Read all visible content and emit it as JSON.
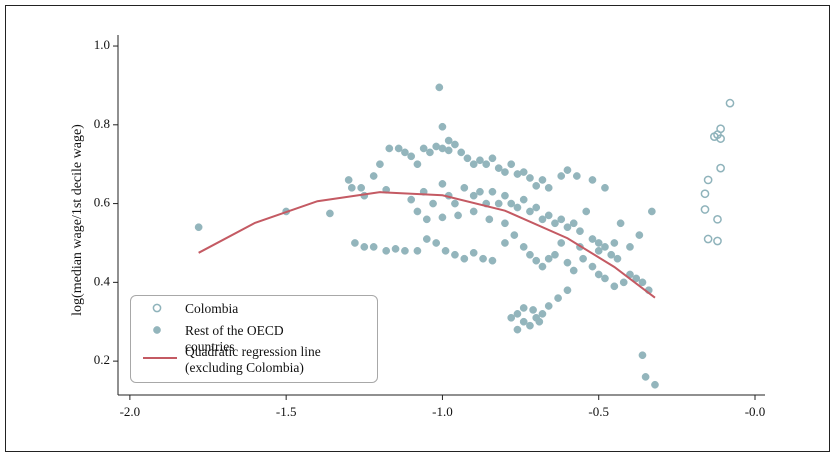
{
  "chart_data": {
    "type": "scatter",
    "ylabel": "log(median wage/1st decile wage)",
    "xlim": [
      -2.038,
      0.032
    ],
    "ylim": [
      0.114,
      1.028
    ],
    "xticks": [
      {
        "value": -2.0,
        "label": "-2.0"
      },
      {
        "value": -1.5,
        "label": "-1.5"
      },
      {
        "value": -1.0,
        "label": "-1.0"
      },
      {
        "value": -0.5,
        "label": "-0.5"
      },
      {
        "value": 0,
        "label": "-0.0"
      }
    ],
    "yticks": [
      0.2,
      0.4,
      0.6,
      0.8,
      {
        "value": 1.0,
        "label": "1.0"
      }
    ],
    "series": [
      {
        "name": "Colombia",
        "style": "open-circle",
        "color": "#8fb3bb",
        "x": [
          -0.08,
          -0.11,
          -0.12,
          -0.13,
          -0.11,
          -0.11,
          -0.15,
          -0.16,
          -0.16,
          -0.12,
          -0.15,
          -0.12
        ],
        "values": [
          0.855,
          0.79,
          0.775,
          0.77,
          0.765,
          0.69,
          0.66,
          0.625,
          0.585,
          0.56,
          0.51,
          0.505
        ]
      },
      {
        "name": "Rest of the OECD countries",
        "style": "circle",
        "color": "#93b5bc",
        "x": [
          -1.3,
          -1.29,
          -1.26,
          -1.22,
          -1.2,
          -1.17,
          -1.14,
          -1.12,
          -1.1,
          -1.08,
          -1.06,
          -1.04,
          -1.02,
          -1.0,
          -0.98,
          -0.96,
          -0.94,
          -0.92,
          -0.9,
          -0.88,
          -0.86,
          -0.84,
          -0.82,
          -0.8,
          -0.78,
          -0.76,
          -0.74,
          -0.72,
          -0.7,
          -0.68,
          -0.66,
          -0.62,
          -0.6,
          -0.57,
          -0.52,
          -0.48,
          -1.25,
          -1.18,
          -1.1,
          -1.06,
          -1.03,
          -1.0,
          -0.98,
          -0.96,
          -0.93,
          -0.9,
          -0.88,
          -0.86,
          -0.84,
          -0.82,
          -0.8,
          -0.78,
          -0.76,
          -0.74,
          -0.72,
          -0.7,
          -0.68,
          -0.66,
          -0.64,
          -0.62,
          -0.6,
          -0.58,
          -0.56,
          -0.54,
          -0.52,
          -0.5,
          -0.48,
          -0.46,
          -0.44,
          -1.08,
          -1.05,
          -1.0,
          -0.95,
          -0.9,
          -0.85,
          -0.8,
          -1.28,
          -1.25,
          -1.22,
          -1.18,
          -1.15,
          -1.12,
          -1.08,
          -1.05,
          -1.02,
          -0.99,
          -0.96,
          -0.93,
          -0.9,
          -0.87,
          -0.84,
          -0.8,
          -0.77,
          -0.74,
          -0.72,
          -0.7,
          -0.68,
          -0.66,
          -0.64,
          -0.6,
          -0.58,
          -0.55,
          -0.52,
          -0.5,
          -0.48,
          -0.45,
          -0.42,
          -0.4,
          -0.38,
          -0.36,
          -0.34,
          -0.62,
          -0.56,
          -0.5,
          -0.45,
          -0.4,
          -0.78,
          -0.76,
          -0.74,
          -0.72,
          -0.7,
          -0.68,
          -0.66,
          -0.74,
          -0.71,
          -0.69,
          -0.63,
          -0.6,
          -0.76,
          -1.78,
          -1.5,
          -1.36,
          -1.01,
          -1.0,
          -0.36,
          -0.35,
          -0.32,
          -0.33,
          -0.43,
          -0.37,
          -0.98
        ],
        "values": [
          0.66,
          0.64,
          0.64,
          0.67,
          0.7,
          0.74,
          0.74,
          0.73,
          0.72,
          0.7,
          0.74,
          0.73,
          0.745,
          0.74,
          0.735,
          0.75,
          0.73,
          0.715,
          0.7,
          0.71,
          0.7,
          0.715,
          0.69,
          0.68,
          0.7,
          0.675,
          0.68,
          0.665,
          0.645,
          0.66,
          0.64,
          0.67,
          0.685,
          0.67,
          0.66,
          0.64,
          0.62,
          0.635,
          0.61,
          0.63,
          0.6,
          0.65,
          0.62,
          0.6,
          0.64,
          0.62,
          0.63,
          0.6,
          0.63,
          0.6,
          0.62,
          0.6,
          0.59,
          0.61,
          0.58,
          0.59,
          0.56,
          0.57,
          0.55,
          0.56,
          0.54,
          0.55,
          0.53,
          0.58,
          0.51,
          0.5,
          0.49,
          0.47,
          0.46,
          0.58,
          0.56,
          0.565,
          0.57,
          0.58,
          0.56,
          0.55,
          0.5,
          0.49,
          0.49,
          0.48,
          0.485,
          0.48,
          0.48,
          0.51,
          0.5,
          0.48,
          0.47,
          0.46,
          0.475,
          0.46,
          0.455,
          0.5,
          0.52,
          0.49,
          0.47,
          0.455,
          0.44,
          0.46,
          0.47,
          0.45,
          0.43,
          0.46,
          0.44,
          0.42,
          0.41,
          0.39,
          0.4,
          0.42,
          0.41,
          0.4,
          0.38,
          0.5,
          0.49,
          0.48,
          0.5,
          0.49,
          0.31,
          0.32,
          0.3,
          0.29,
          0.31,
          0.32,
          0.34,
          0.335,
          0.33,
          0.3,
          0.36,
          0.38,
          0.28,
          0.54,
          0.58,
          0.575,
          0.895,
          0.795,
          0.215,
          0.16,
          0.14,
          0.58,
          0.55,
          0.52,
          0.76
        ]
      },
      {
        "name": "Quadratic regression line (excluding Colombia)",
        "style": "line",
        "color": "#c45a63",
        "x": [
          -1.78,
          -1.6,
          -1.4,
          -1.2,
          -1.0,
          -0.8,
          -0.6,
          -0.45,
          -0.32
        ],
        "values": [
          0.475,
          0.551,
          0.606,
          0.629,
          0.621,
          0.582,
          0.512,
          0.439,
          0.361
        ]
      }
    ]
  }
}
